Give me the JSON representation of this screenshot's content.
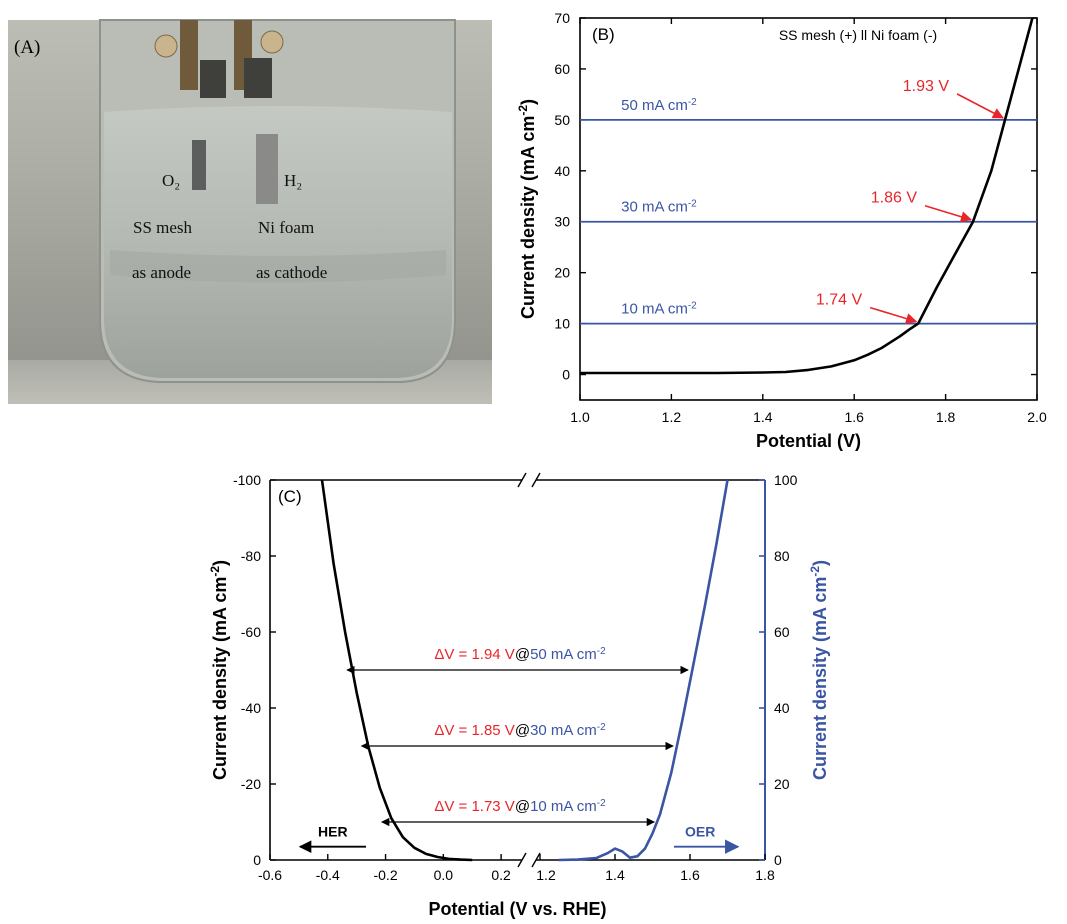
{
  "figure": {
    "panel_a": {
      "label": "(A)",
      "texts": {
        "o2": "O₂",
        "h2": "H₂",
        "anode_name": "SS mesh",
        "anode_role": "as anode",
        "cathode_name": "Ni foam",
        "cathode_role": "as cathode"
      }
    }
  },
  "chart_data": [
    {
      "panel": "B",
      "type": "line",
      "panel_label": "(B)",
      "title": "SS mesh (+) ll Ni foam (-)",
      "xlabel": "Potential (V)",
      "ylabel": "Current density (mA cm⁻²)",
      "xlim": [
        1.0,
        2.0
      ],
      "ylim": [
        -5,
        70
      ],
      "xticks": [
        "1.0",
        "1.2",
        "1.4",
        "1.6",
        "1.8",
        "2.0"
      ],
      "yticks": [
        "0",
        "10",
        "20",
        "30",
        "40",
        "50",
        "60",
        "70"
      ],
      "grid": false,
      "series": [
        {
          "color": "#000000",
          "x": [
            1.0,
            1.1,
            1.2,
            1.3,
            1.4,
            1.45,
            1.5,
            1.55,
            1.6,
            1.63,
            1.66,
            1.7,
            1.72,
            1.74,
            1.78,
            1.82,
            1.86,
            1.9,
            1.93,
            1.96,
            1.99
          ],
          "y": [
            0.3,
            0.3,
            0.3,
            0.3,
            0.4,
            0.5,
            0.9,
            1.6,
            2.8,
            3.9,
            5.2,
            7.5,
            8.8,
            10,
            17,
            23.5,
            30,
            40,
            50,
            60,
            70
          ]
        }
      ],
      "reference_lines": [
        {
          "y": 10,
          "label": "10 mA cm⁻²",
          "color": "#3a55a4"
        },
        {
          "y": 30,
          "label": "30 mA cm⁻²",
          "color": "#3a55a4"
        },
        {
          "y": 50,
          "label": "50 mA cm⁻²",
          "color": "#3a55a4"
        }
      ],
      "annotations": [
        {
          "text": "1.74 V",
          "x": 1.74,
          "y": 10,
          "color": "#e8262a"
        },
        {
          "text": "1.86 V",
          "x": 1.86,
          "y": 30,
          "color": "#e8262a"
        },
        {
          "text": "1.93 V",
          "x": 1.93,
          "y": 50,
          "color": "#e8262a"
        }
      ]
    },
    {
      "panel": "C",
      "type": "line",
      "panel_label": "(C)",
      "xlabel": "Potential (V vs. RHE)",
      "ylabel_left": "Current density (mA cm⁻²)",
      "ylabel_right": "Current density (mA cm⁻²)",
      "axis_break": true,
      "xlim_left": [
        -0.6,
        0.3
      ],
      "xlim_right": [
        1.2,
        1.8
      ],
      "xticks_left": [
        "-0.6",
        "-0.4",
        "-0.2",
        "0.0",
        "0.2"
      ],
      "xticks_right": [
        "1.2",
        "1.4",
        "1.6",
        "1.8"
      ],
      "ylim_left": [
        0,
        -100
      ],
      "yticks_left": [
        "0",
        "-20",
        "-40",
        "-60",
        "-80",
        "-100"
      ],
      "ylim_right": [
        0,
        100
      ],
      "yticks_right": [
        "0",
        "20",
        "40",
        "60",
        "80",
        "100"
      ],
      "left_axis_color": "#000000",
      "right_axis_color": "#3a55a4",
      "series": [
        {
          "name": "HER",
          "color": "#000000",
          "x": [
            -0.42,
            -0.38,
            -0.34,
            -0.3,
            -0.26,
            -0.22,
            -0.18,
            -0.14,
            -0.1,
            -0.06,
            -0.02,
            0.02,
            0.06,
            0.1
          ],
          "y": [
            -100,
            -78,
            -60,
            -44,
            -30,
            -19,
            -11,
            -6,
            -3.2,
            -1.6,
            -0.8,
            -0.3,
            -0.1,
            0
          ]
        },
        {
          "name": "OER",
          "color": "#3a55a4",
          "x": [
            1.25,
            1.3,
            1.35,
            1.38,
            1.4,
            1.42,
            1.44,
            1.46,
            1.48,
            1.5,
            1.52,
            1.55,
            1.58,
            1.61,
            1.64,
            1.67,
            1.7
          ],
          "y": [
            0,
            0.1,
            0.5,
            1.8,
            3,
            2.2,
            0.6,
            1,
            3,
            7,
            12,
            23,
            37,
            52,
            67,
            83,
            100
          ]
        }
      ],
      "legend_arrows": [
        {
          "text": "HER",
          "direction": "left",
          "color": "#000000"
        },
        {
          "text": "OER",
          "direction": "right",
          "color": "#3a55a4"
        }
      ],
      "delta_annotations": [
        {
          "value": "ΔV = 1.94 V",
          "at": "@",
          "condition": "50 mA cm⁻²",
          "current": 50,
          "x_her": -0.34,
          "x_oer": 1.6
        },
        {
          "value": "ΔV = 1.85 V",
          "at": "@",
          "condition": "30 mA cm⁻²",
          "current": 30,
          "x_her": -0.29,
          "x_oer": 1.56
        },
        {
          "value": "ΔV = 1.73 V",
          "at": "@",
          "condition": "10 mA cm⁻²",
          "current": 10,
          "x_her": -0.22,
          "x_oer": 1.51
        }
      ],
      "delta_value_color": "#e8262a",
      "delta_condition_color": "#3a55a4"
    }
  ]
}
